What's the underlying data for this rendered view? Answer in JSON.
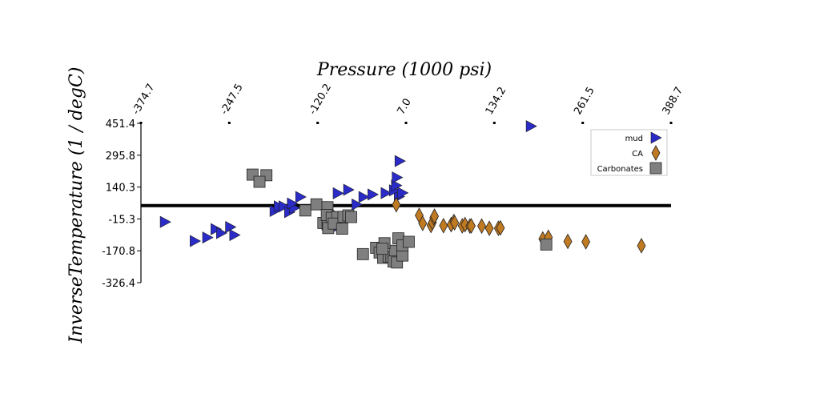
{
  "chart_data": {
    "type": "scatter",
    "title": "",
    "xlabel": "Pressure (1000 psi)",
    "ylabel": "InverseTemperature (1 / degC)",
    "x_ticks": [
      "-374.7",
      "-247.5",
      "-120.2",
      "7.0",
      "134.2",
      "261.5",
      "388.7"
    ],
    "y_ticks": [
      "451.4",
      "295.8",
      "140.3",
      "-15.3",
      "-170.8",
      "-326.4"
    ],
    "xlim": [
      -374.7,
      388.7
    ],
    "ylim": [
      -326.4,
      451.4
    ],
    "x_axis_position": "top",
    "zero_line_y": 50,
    "legend_position": "top-right",
    "grid": false,
    "series": [
      {
        "name": "mud",
        "marker": "triangle-right",
        "color": "#2b2bc8",
        "points": [
          [
            -340,
            -30
          ],
          [
            -297,
            -123
          ],
          [
            -279,
            -106
          ],
          [
            -267,
            -65
          ],
          [
            -259,
            -84
          ],
          [
            -246,
            -55
          ],
          [
            -240,
            -94
          ],
          [
            -182,
            24
          ],
          [
            -176,
            46
          ],
          [
            -169,
            46
          ],
          [
            -161,
            18
          ],
          [
            -154,
            38
          ],
          [
            -145,
            92
          ],
          [
            -157,
            60
          ],
          [
            -102,
            20
          ],
          [
            -91,
            110
          ],
          [
            -89,
            -48
          ],
          [
            -76,
            127
          ],
          [
            -54,
            92
          ],
          [
            -3,
            94
          ],
          [
            -22,
            111
          ],
          [
            -10,
            124
          ],
          [
            -7,
            148
          ],
          [
            -6,
            187
          ],
          [
            -2,
            267
          ],
          [
            2,
            112
          ],
          [
            187,
            437
          ],
          [
            -64,
            55
          ],
          [
            -41,
            104
          ]
        ]
      },
      {
        "name": "CA",
        "marker": "diamond",
        "color": "#c07a22",
        "points": [
          [
            -7,
            54
          ],
          [
            26,
            2
          ],
          [
            31,
            -37
          ],
          [
            43,
            -47
          ],
          [
            45,
            -33
          ],
          [
            47,
            -10
          ],
          [
            48,
            -2
          ],
          [
            61,
            -48
          ],
          [
            72,
            -43
          ],
          [
            76,
            -28
          ],
          [
            77,
            -34
          ],
          [
            88,
            -49
          ],
          [
            92,
            -43
          ],
          [
            99,
            -50
          ],
          [
            101,
            -49
          ],
          [
            116,
            -50
          ],
          [
            127,
            -61
          ],
          [
            140,
            -61
          ],
          [
            143,
            -59
          ],
          [
            204,
            -113
          ],
          [
            212,
            -105
          ],
          [
            240,
            -125
          ],
          [
            266,
            -127
          ],
          [
            346,
            -146
          ]
        ]
      },
      {
        "name": "Carbonates",
        "marker": "square",
        "color": "#7f7f7f",
        "points": [
          [
            -214,
            201
          ],
          [
            -194,
            198
          ],
          [
            -204,
            166
          ],
          [
            -138,
            26
          ],
          [
            -122,
            56
          ],
          [
            -106,
            42
          ],
          [
            -112,
            -35
          ],
          [
            -106,
            -42
          ],
          [
            -107,
            4
          ],
          [
            -100,
            -10
          ],
          [
            -92,
            -6
          ],
          [
            -105,
            -60
          ],
          [
            -97,
            -38
          ],
          [
            -85,
            -63
          ],
          [
            -83,
            -5
          ],
          [
            -76,
            2
          ],
          [
            -72,
            -6
          ],
          [
            -55,
            -187
          ],
          [
            -36,
            -156
          ],
          [
            -31,
            -179
          ],
          [
            -26,
            -205
          ],
          [
            -18,
            -200
          ],
          [
            -14,
            -200
          ],
          [
            -9,
            -171
          ],
          [
            -11,
            -223
          ],
          [
            -6,
            -228
          ],
          [
            2,
            -194
          ],
          [
            -4,
            -110
          ],
          [
            -24,
            -134
          ],
          [
            -27,
            -161
          ],
          [
            2,
            -144
          ],
          [
            11,
            -127
          ],
          [
            209,
            -140
          ]
        ]
      }
    ]
  }
}
